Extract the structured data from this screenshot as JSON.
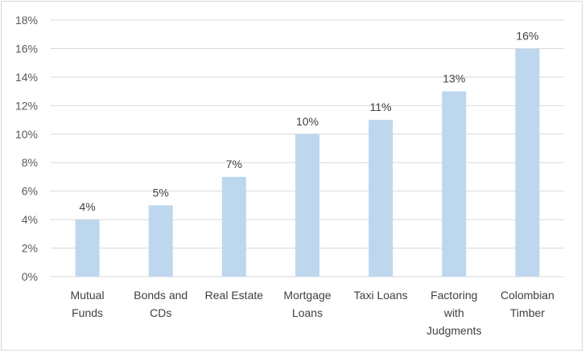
{
  "chart_data": {
    "type": "bar",
    "categories": [
      [
        "Mutual",
        "Funds"
      ],
      [
        "Bonds and",
        "CDs"
      ],
      [
        "Real Estate"
      ],
      [
        "Mortgage",
        "Loans"
      ],
      [
        "Taxi Loans"
      ],
      [
        "Factoring",
        "with",
        "Judgments"
      ],
      [
        "Colombian",
        "Timber"
      ]
    ],
    "values": [
      4,
      5,
      7,
      10,
      11,
      13,
      16
    ],
    "data_labels": [
      "4%",
      "5%",
      "7%",
      "10%",
      "11%",
      "13%",
      "16%"
    ],
    "y_ticks": [
      0,
      2,
      4,
      6,
      8,
      10,
      12,
      14,
      16,
      18
    ],
    "y_tick_labels": [
      "0%",
      "2%",
      "4%",
      "6%",
      "8%",
      "10%",
      "12%",
      "14%",
      "16%",
      "18%"
    ],
    "ylim": [
      0,
      18
    ],
    "grid": true,
    "legend": "none",
    "colors": {
      "bar": "#bdd7ee",
      "grid": "#d9d9d9",
      "axis": "#d9d9d9"
    }
  }
}
